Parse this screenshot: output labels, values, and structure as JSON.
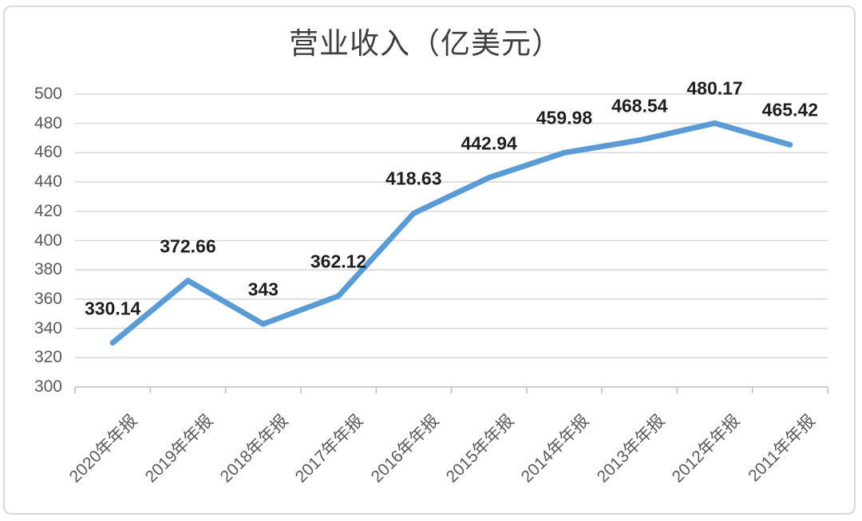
{
  "chart_data": {
    "type": "line",
    "title": "营业收入（亿美元）",
    "categories": [
      "2020年年报",
      "2019年年报",
      "2018年年报",
      "2017年年报",
      "2016年年报",
      "2015年年报",
      "2014年年报",
      "2013年年报",
      "2012年年报",
      "2011年年报"
    ],
    "values": [
      330.14,
      372.66,
      343,
      362.12,
      418.63,
      442.94,
      459.98,
      468.54,
      480.17,
      465.42
    ],
    "point_labels": [
      "330.14",
      "372.66",
      "343",
      "362.12",
      "418.63",
      "442.94",
      "459.98",
      "468.54",
      "480.17",
      "465.42"
    ],
    "ylim": [
      300,
      500
    ],
    "yticks": [
      "500",
      "480",
      "460",
      "440",
      "420",
      "400",
      "380",
      "360",
      "340",
      "320",
      "300"
    ],
    "ytick_step": 20,
    "xlabel": "",
    "ylabel": "",
    "grid": true,
    "legend": "none",
    "line_color": "#5b9bd5",
    "gridline_color": "#d9d9d9",
    "axis_color": "#c6c6c6",
    "axis_text_color": "#595959",
    "data_label_color": "#1f1f1f",
    "title_color": "#3f3f3f"
  }
}
